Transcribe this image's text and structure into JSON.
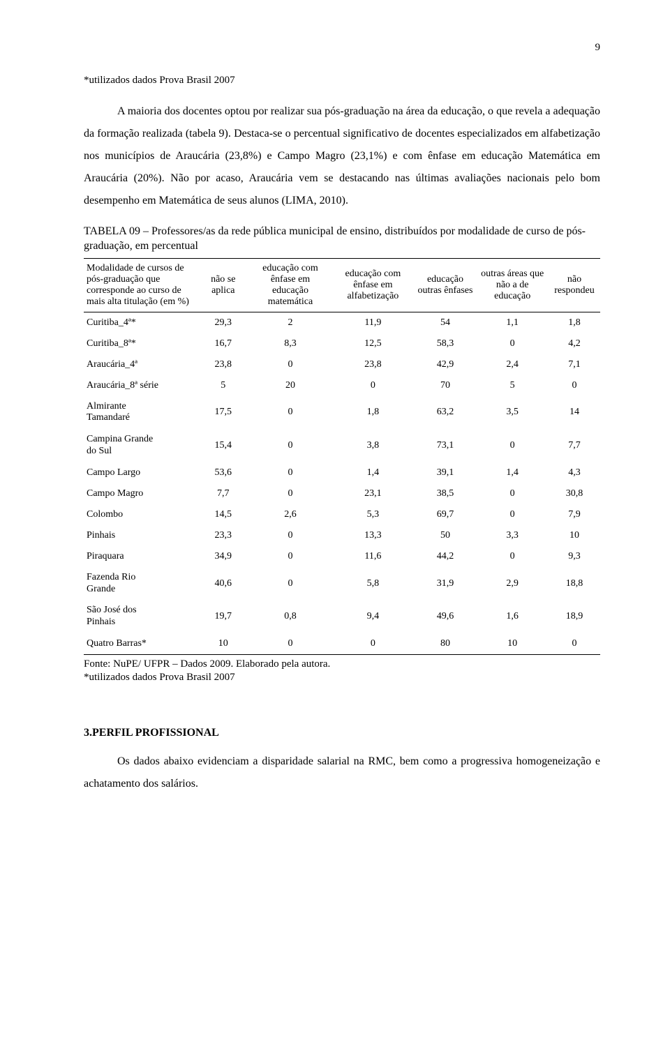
{
  "page_number": "9",
  "footnote": "*utilizados dados Prova Brasil 2007",
  "paragraph1": "A maioria dos docentes optou por realizar sua pós-graduação na área da educação, o que revela a adequação da formação realizada (tabela 9). Destaca-se o percentual significativo de docentes especializados em alfabetização nos municípios de Araucária (23,8%) e Campo Magro (23,1%) e com ênfase em educação Matemática em Araucária (20%). Não por acaso, Araucária vem se destacando nas últimas avaliações nacionais pelo bom desempenho em Matemática de seus alunos (LIMA, 2010).",
  "table_title": "TABELA 09 – Professores/as da rede pública municipal de ensino, distribuídos por modalidade de curso de pós-graduação, em percentual",
  "table": {
    "columns": [
      "Modalidade de cursos de pós-graduação que corresponde ao curso de mais alta titulação (em %)",
      "não se aplica",
      "educação com ênfase em educação matemática",
      "educação com ênfase em alfabetização",
      "educação outras ênfases",
      "outras áreas que não a de educação",
      "não respondeu"
    ],
    "rows": [
      [
        "Curitiba_4ª*",
        "29,3",
        "2",
        "11,9",
        "54",
        "1,1",
        "1,8"
      ],
      [
        "Curitiba_8ª*",
        "16,7",
        "8,3",
        "12,5",
        "58,3",
        "0",
        "4,2"
      ],
      [
        "Araucária_4ª",
        "23,8",
        "0",
        "23,8",
        "42,9",
        "2,4",
        "7,1"
      ],
      [
        "Araucária_8ª série",
        "5",
        "20",
        "0",
        "70",
        "5",
        "0"
      ],
      [
        "Almirante\nTamandaré",
        "17,5",
        "0",
        "1,8",
        "63,2",
        "3,5",
        "14"
      ],
      [
        "Campina Grande\ndo Sul",
        "15,4",
        "0",
        "3,8",
        "73,1",
        "0",
        "7,7"
      ],
      [
        "Campo Largo",
        "53,6",
        "0",
        "1,4",
        "39,1",
        "1,4",
        "4,3"
      ],
      [
        "Campo Magro",
        "7,7",
        "0",
        "23,1",
        "38,5",
        "0",
        "30,8"
      ],
      [
        "Colombo",
        "14,5",
        "2,6",
        "5,3",
        "69,7",
        "0",
        "7,9"
      ],
      [
        "Pinhais",
        "23,3",
        "0",
        "13,3",
        "50",
        "3,3",
        "10"
      ],
      [
        "Piraquara",
        "34,9",
        "0",
        "11,6",
        "44,2",
        "0",
        "9,3"
      ],
      [
        "Fazenda Rio\nGrande",
        "40,6",
        "0",
        "5,8",
        "31,9",
        "2,9",
        "18,8"
      ],
      [
        "São José dos\nPinhais",
        "19,7",
        "0,8",
        "9,4",
        "49,6",
        "1,6",
        "18,9"
      ],
      [
        "Quatro Barras*",
        "10",
        "0",
        "0",
        "80",
        "10",
        "0"
      ]
    ],
    "col_first_multiline_rows": [
      4,
      5,
      11,
      12
    ]
  },
  "table_source_line1": "Fonte: NuPE/ UFPR – Dados 2009. Elaborado pela autora.",
  "table_source_line2": "*utilizados dados Prova Brasil 2007",
  "section_heading": "3.PERFIL PROFISSIONAL",
  "paragraph2": "Os dados abaixo evidenciam a disparidade salarial na RMC, bem como a progressiva homogeneização e achatamento dos salários."
}
